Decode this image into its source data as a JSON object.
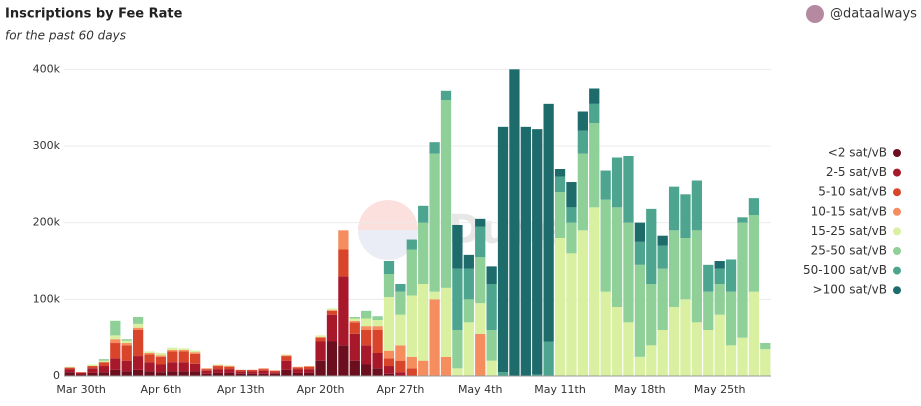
{
  "chart_data": {
    "type": "stacked_bar",
    "title": "Inscriptions by Fee Rate",
    "subtitle": "for the past 60 days",
    "author": "@dataalways",
    "watermark": "Dune",
    "categories": [
      null,
      "Mar 30th",
      null,
      null,
      null,
      null,
      null,
      null,
      "Apr 6th",
      null,
      null,
      null,
      null,
      null,
      null,
      "Apr 13th",
      null,
      null,
      null,
      null,
      null,
      null,
      "Apr 20th",
      null,
      null,
      null,
      null,
      null,
      null,
      "Apr 27th",
      null,
      null,
      null,
      null,
      null,
      null,
      "May 4th",
      null,
      null,
      null,
      null,
      null,
      null,
      "May 11th",
      null,
      null,
      null,
      null,
      null,
      null,
      "May 18th",
      null,
      null,
      null,
      null,
      null,
      null,
      "May 25th",
      null,
      null,
      null,
      null
    ],
    "ylim": [
      0,
      420000
    ],
    "yticks": [
      {
        "value": 0,
        "label": "0"
      },
      {
        "value": 100000,
        "label": "100k"
      },
      {
        "value": 200000,
        "label": "200k"
      },
      {
        "value": 300000,
        "label": "300k"
      },
      {
        "value": 400000,
        "label": "400k"
      }
    ],
    "grid": true,
    "legend": "right",
    "series": [
      {
        "name": "<2 sat/vB",
        "color": "#6b0f1f",
        "values": [
          5000,
          2000,
          4000,
          5000,
          8000,
          6000,
          8000,
          6000,
          5000,
          6000,
          6000,
          6000,
          3000,
          4000,
          4000,
          3000,
          3000,
          3000,
          3000,
          8000,
          4000,
          4000,
          20000,
          45000,
          40000,
          20000,
          15000,
          10000,
          3000,
          0,
          0,
          0,
          0,
          0,
          0,
          0,
          0,
          0,
          0,
          0,
          0,
          0,
          0,
          0,
          0,
          0,
          0,
          0,
          0,
          0,
          0,
          0,
          0,
          0,
          0,
          0,
          0,
          0,
          0,
          0,
          0,
          0
        ]
      },
      {
        "name": "2-5 sat/vB",
        "color": "#a8182b",
        "values": [
          4000,
          2000,
          6000,
          8000,
          15000,
          14000,
          18000,
          12000,
          10000,
          12000,
          12000,
          10000,
          4000,
          5000,
          5000,
          3000,
          3000,
          4000,
          2000,
          12000,
          5000,
          5000,
          25000,
          35000,
          90000,
          35000,
          25000,
          20000,
          10000,
          5000,
          0,
          0,
          0,
          0,
          0,
          0,
          0,
          0,
          0,
          0,
          0,
          0,
          0,
          0,
          0,
          0,
          0,
          0,
          0,
          0,
          0,
          0,
          0,
          0,
          0,
          0,
          0,
          0,
          0,
          0,
          0,
          0
        ]
      },
      {
        "name": "5-10 sat/vB",
        "color": "#d9452a",
        "values": [
          2000,
          1000,
          3000,
          5000,
          20000,
          20000,
          34000,
          10000,
          10000,
          14000,
          14000,
          13000,
          2000,
          4000,
          3000,
          2000,
          2000,
          2000,
          2000,
          6000,
          2000,
          3000,
          5000,
          5000,
          35000,
          15000,
          20000,
          30000,
          10000,
          15000,
          10000,
          0,
          0,
          0,
          0,
          0,
          0,
          0,
          0,
          0,
          0,
          0,
          0,
          0,
          0,
          0,
          0,
          0,
          0,
          0,
          0,
          0,
          0,
          0,
          0,
          0,
          0,
          0,
          0,
          0,
          0,
          0
        ]
      },
      {
        "name": "10-15 sat/vB",
        "color": "#f58d5e",
        "values": [
          0,
          0,
          0,
          0,
          5000,
          3000,
          3000,
          2000,
          2000,
          2000,
          2000,
          2000,
          1000,
          1000,
          1000,
          0,
          0,
          1000,
          0,
          1000,
          1000,
          1000,
          1000,
          1000,
          25000,
          2000,
          5000,
          5000,
          10000,
          20000,
          15000,
          20000,
          100000,
          25000,
          0,
          0,
          55000,
          0,
          0,
          0,
          0,
          0,
          0,
          0,
          0,
          0,
          0,
          0,
          0,
          0,
          0,
          0,
          0,
          0,
          0,
          0,
          0,
          0,
          0,
          0,
          0,
          0
        ]
      },
      {
        "name": "15-25 sat/vB",
        "color": "#d8f0a0",
        "values": [
          1000,
          0,
          2000,
          2000,
          5000,
          3000,
          5000,
          2000,
          3000,
          3000,
          2000,
          2000,
          0,
          1000,
          1000,
          0,
          0,
          0,
          0,
          1000,
          0,
          0,
          2000,
          2000,
          0,
          3000,
          10000,
          8000,
          70000,
          40000,
          80000,
          100000,
          10000,
          90000,
          10000,
          70000,
          40000,
          20000,
          0,
          0,
          0,
          0,
          0,
          180000,
          160000,
          190000,
          220000,
          110000,
          90000,
          70000,
          25000,
          40000,
          60000,
          90000,
          100000,
          70000,
          60000,
          80000,
          40000,
          50000,
          110000,
          35000
        ]
      },
      {
        "name": "25-50 sat/vB",
        "color": "#8fcf98",
        "values": [
          0,
          0,
          0,
          2000,
          19000,
          2000,
          9000,
          0,
          0,
          0,
          0,
          0,
          0,
          0,
          0,
          0,
          0,
          0,
          0,
          0,
          0,
          0,
          0,
          0,
          0,
          2000,
          10000,
          5000,
          30000,
          30000,
          60000,
          80000,
          180000,
          245000,
          50000,
          30000,
          60000,
          40000,
          0,
          0,
          0,
          0,
          0,
          60000,
          40000,
          100000,
          110000,
          120000,
          130000,
          130000,
          120000,
          80000,
          80000,
          100000,
          80000,
          120000,
          50000,
          40000,
          70000,
          150000,
          100000,
          8000
        ]
      },
      {
        "name": "50-100 sat/vB",
        "color": "#4ea58f",
        "values": [
          0,
          0,
          0,
          0,
          0,
          0,
          0,
          0,
          0,
          0,
          0,
          0,
          0,
          0,
          0,
          0,
          0,
          0,
          0,
          0,
          0,
          0,
          0,
          0,
          0,
          0,
          0,
          0,
          17000,
          10000,
          13000,
          22000,
          15000,
          12000,
          80000,
          40000,
          40000,
          60000,
          5000,
          0,
          0,
          2000,
          45000,
          20000,
          20000,
          30000,
          25000,
          38000,
          65000,
          87000,
          30000,
          98000,
          30000,
          57000,
          57000,
          65000,
          35000,
          20000,
          42000,
          7000,
          22000,
          0
        ]
      },
      {
        "name": ">100 sat/vB",
        "color": "#1d6b6b",
        "values": [
          0,
          0,
          0,
          0,
          0,
          0,
          0,
          0,
          0,
          0,
          0,
          0,
          0,
          0,
          0,
          0,
          0,
          0,
          0,
          0,
          0,
          0,
          0,
          0,
          0,
          0,
          0,
          0,
          0,
          0,
          0,
          0,
          0,
          0,
          57000,
          18000,
          10000,
          23000,
          320000,
          400000,
          325000,
          320000,
          310000,
          10000,
          33000,
          25000,
          20000,
          0,
          0,
          0,
          25000,
          0,
          13000,
          0,
          0,
          0,
          0,
          10000,
          0,
          0,
          0,
          0
        ]
      }
    ]
  }
}
